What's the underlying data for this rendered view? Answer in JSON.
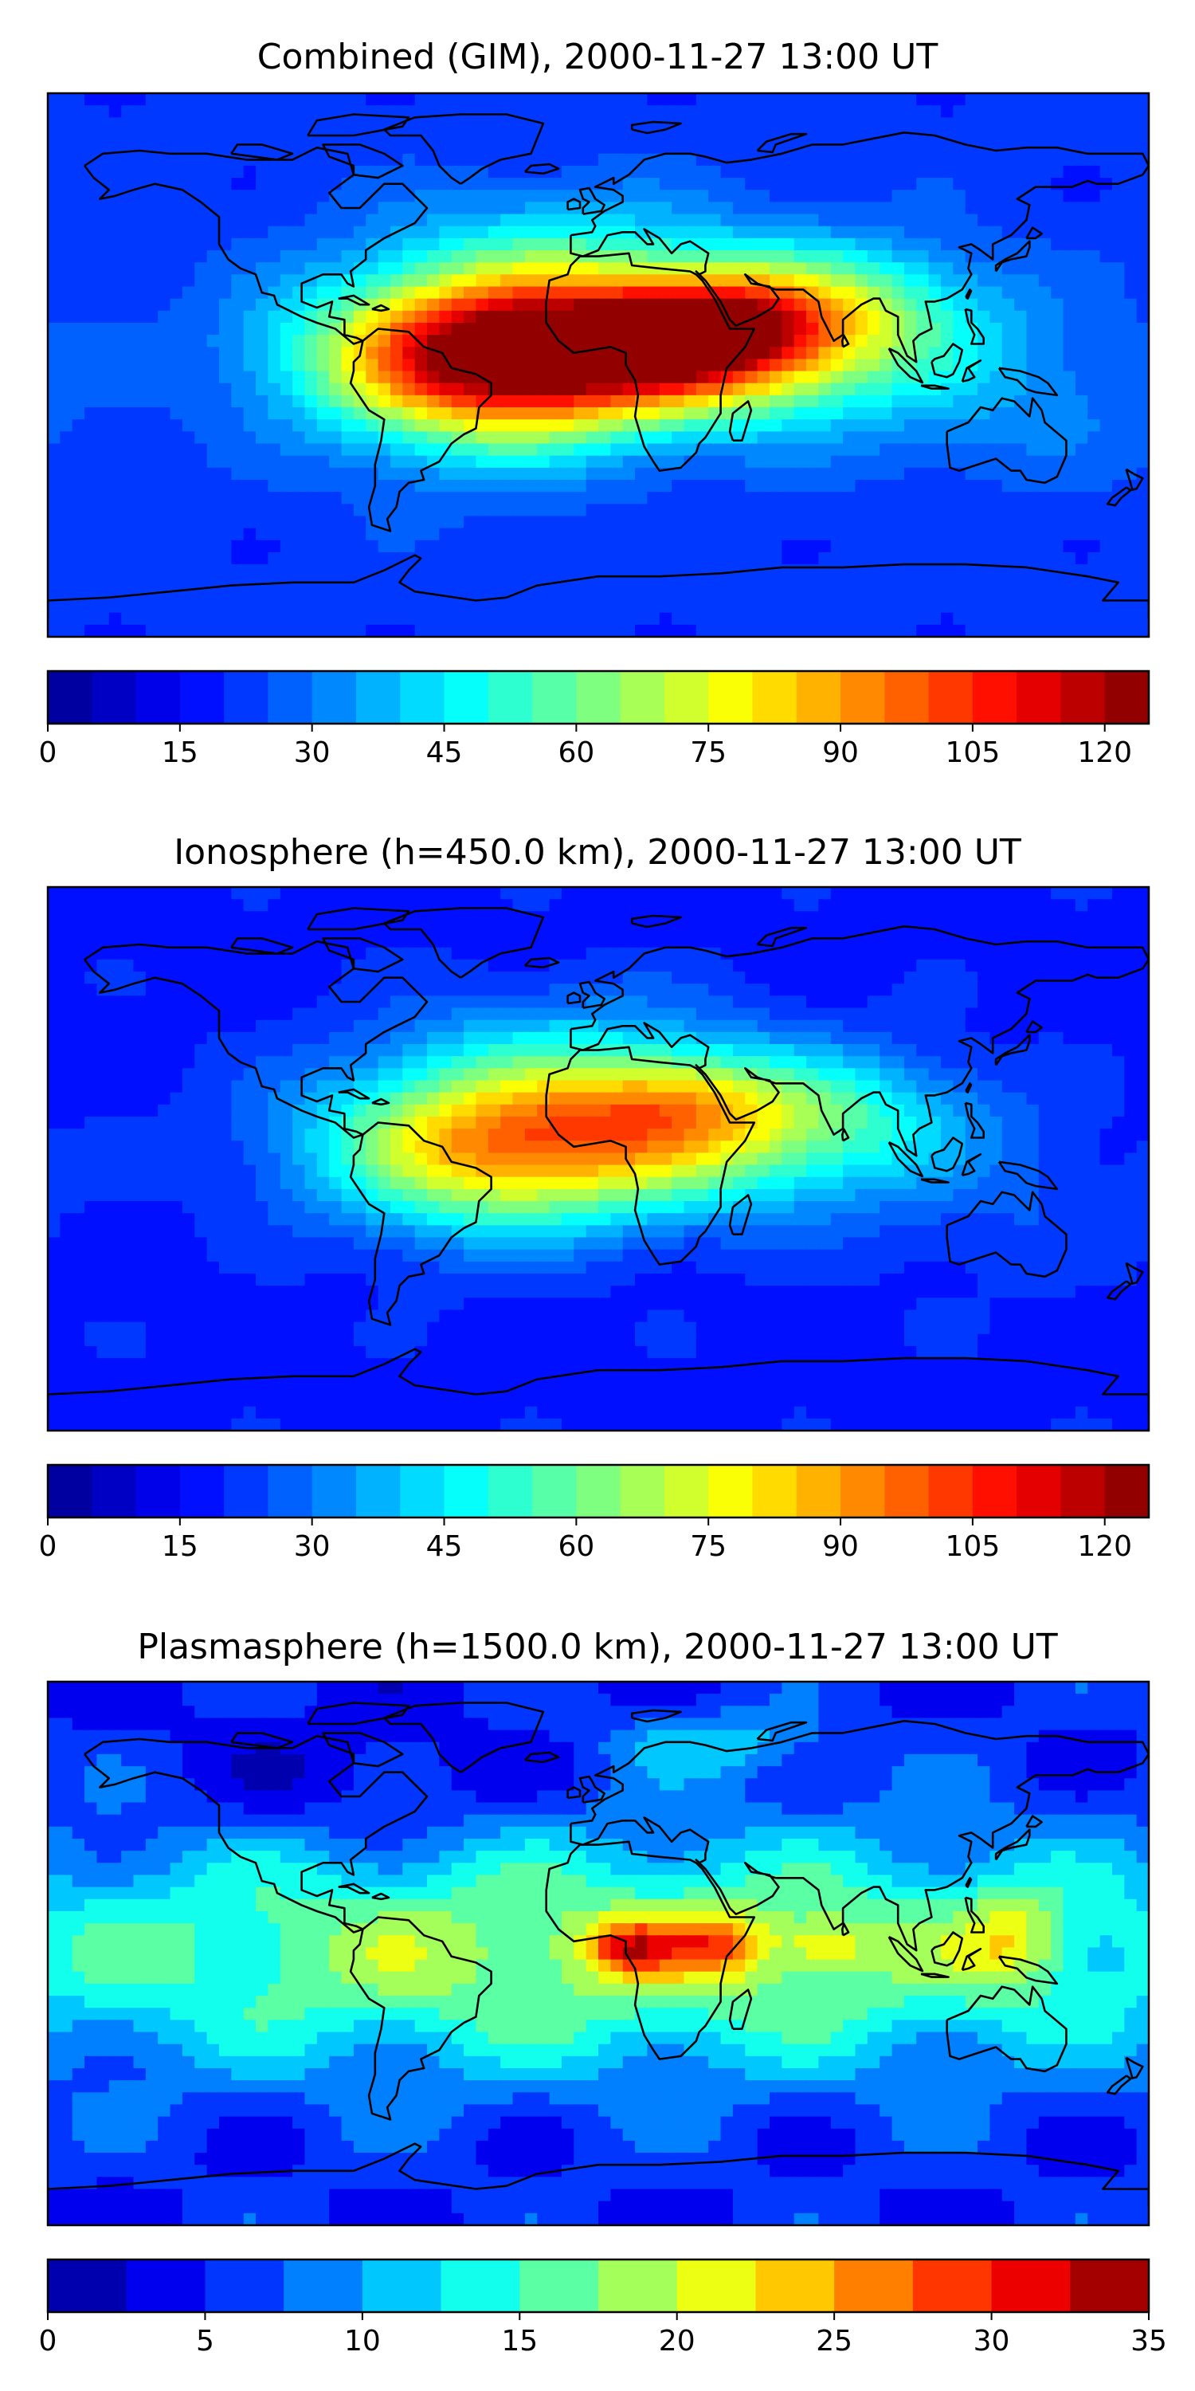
{
  "chart_data": [
    {
      "type": "heatmap",
      "title": "Combined (GIM), 2000-11-27 13:00 UT",
      "colorbar": {
        "min": 0,
        "max": 125,
        "step": 5,
        "ticks": [
          0,
          15,
          30,
          45,
          60,
          75,
          90,
          105,
          120
        ],
        "tick_labels": [
          "0",
          "15",
          "30",
          "45",
          "60",
          "75",
          "90",
          "105",
          "120"
        ]
      },
      "field": {
        "base": 22,
        "blobs": [
          {
            "lon": 0,
            "lat": 5,
            "amp": 95,
            "slon": 55,
            "slat": 17
          },
          {
            "lon": 38,
            "lat": 12,
            "amp": 40,
            "slon": 25,
            "slat": 12
          },
          {
            "lon": -40,
            "lat": 0,
            "amp": 45,
            "slon": 35,
            "slat": 22
          },
          {
            "lon": 75,
            "lat": 20,
            "amp": 30,
            "slon": 35,
            "slat": 15
          },
          {
            "lon": -10,
            "lat": 40,
            "amp": 15,
            "slon": 40,
            "slat": 15
          },
          {
            "lon": 130,
            "lat": -10,
            "amp": 10,
            "slon": 40,
            "slat": 20
          }
        ]
      }
    },
    {
      "type": "heatmap",
      "title": "Ionosphere  (h=450.0 km), 2000-11-27 13:00 UT",
      "colorbar": {
        "min": 0,
        "max": 125,
        "step": 5,
        "ticks": [
          0,
          15,
          30,
          45,
          60,
          75,
          90,
          105,
          120
        ],
        "tick_labels": [
          "0",
          "15",
          "30",
          "45",
          "60",
          "75",
          "90",
          "105",
          "120"
        ]
      },
      "field": {
        "base": 18,
        "blobs": [
          {
            "lon": 0,
            "lat": 8,
            "amp": 62,
            "slon": 55,
            "slat": 18
          },
          {
            "lon": 25,
            "lat": 20,
            "amp": 18,
            "slon": 22,
            "slat": 10
          },
          {
            "lon": -40,
            "lat": 0,
            "amp": 30,
            "slon": 35,
            "slat": 20
          },
          {
            "lon": 75,
            "lat": 15,
            "amp": 20,
            "slon": 35,
            "slat": 15
          },
          {
            "lon": -10,
            "lat": 40,
            "amp": 12,
            "slon": 40,
            "slat": 15
          },
          {
            "lon": 130,
            "lat": -15,
            "amp": 6,
            "slon": 40,
            "slat": 20
          }
        ]
      }
    },
    {
      "type": "heatmap",
      "title": "Plasmasphere (h=1500.0 km), 2000-11-27 13:00 UT",
      "colorbar": {
        "min": 0,
        "max": 35,
        "step": 2.5,
        "ticks": [
          0,
          5,
          10,
          15,
          20,
          25,
          30,
          35
        ],
        "tick_labels": [
          "0",
          "5",
          "10",
          "15",
          "20",
          "25",
          "30",
          "35"
        ]
      },
      "field": {
        "base": 5,
        "blobs": [
          {
            "lon": 0,
            "lat": 0,
            "amp": 14,
            "slon": 180,
            "slat": 28
          },
          {
            "lon": 10,
            "lat": 2,
            "amp": 12,
            "slon": 10,
            "slat": 6
          },
          {
            "lon": 38,
            "lat": 3,
            "amp": 10,
            "slon": 12,
            "slat": 7
          },
          {
            "lon": 75,
            "lat": 2,
            "amp": 6,
            "slon": 10,
            "slat": 6
          },
          {
            "lon": 135,
            "lat": 5,
            "amp": 7,
            "slon": 12,
            "slat": 12
          },
          {
            "lon": 40,
            "lat": 70,
            "amp": 6,
            "slon": 25,
            "slat": 8
          },
          {
            "lon": -80,
            "lat": 55,
            "amp": -3,
            "slon": 40,
            "slat": 15
          }
        ]
      }
    }
  ],
  "colors": {
    "jet": [
      "#00008f",
      "#0000ff",
      "#007fff",
      "#00ffff",
      "#7fff7f",
      "#ffff00",
      "#ff7f00",
      "#ff0000",
      "#7f0000"
    ],
    "coast": "#000000"
  }
}
